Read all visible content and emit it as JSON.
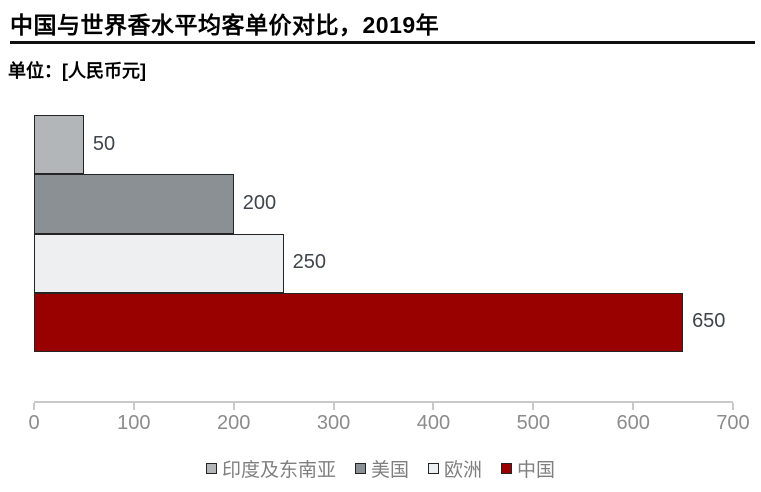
{
  "chart_data": {
    "type": "bar",
    "orientation": "horizontal",
    "title": "中国与世界香水平均客单价对比，2019年",
    "unit_label": "单位：[人民币元]",
    "categories": [
      "印度及东南亚",
      "美国",
      "欧洲",
      "中国"
    ],
    "values": [
      50,
      200,
      250,
      650
    ],
    "value_labels": [
      "50",
      "200",
      "250",
      "650"
    ],
    "colors": [
      "#b3b6b9",
      "#8b9095",
      "#edeff0",
      "#990000"
    ],
    "bar_border_color": "#242424",
    "xlim": [
      0,
      700
    ],
    "xticks": [
      0,
      100,
      200,
      300,
      400,
      500,
      600,
      700
    ],
    "xtick_labels": [
      "0",
      "100",
      "200",
      "300",
      "400",
      "500",
      "600",
      "700"
    ],
    "grid": false,
    "legend_position": "bottom",
    "axis_line_color": "#c9c9c9",
    "tick_label_color": "#8c8c8c",
    "value_label_color": "#40444b",
    "legend_text_color": "#7f7f7f",
    "title_color": "#000000"
  }
}
